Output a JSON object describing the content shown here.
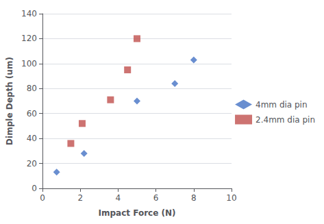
{
  "chart_data": {
    "type": "scatter",
    "xlabel": "Impact Force (N)",
    "ylabel": "Dimple Depth (um)",
    "series": [
      {
        "name": "4mm dia pin",
        "color": "#4472C4",
        "marker": "diamond",
        "x": [
          0.75,
          2.2,
          5.0,
          7.0,
          8.0
        ],
        "values": [
          13,
          28,
          70,
          84,
          103
        ]
      },
      {
        "name": "2.4mm dia pin",
        "color": "#C0504D",
        "marker": "square",
        "x": [
          1.5,
          2.1,
          3.6,
          4.5,
          5.0
        ],
        "values": [
          36,
          52,
          71,
          95,
          120
        ]
      }
    ],
    "xlim": [
      0,
      10
    ],
    "ylim": [
      0,
      140
    ],
    "xticks": [
      0,
      2,
      4,
      6,
      8,
      10
    ],
    "yticks": [
      0,
      20,
      40,
      60,
      80,
      100,
      120,
      140
    ],
    "grid": "y",
    "legend": "right"
  }
}
